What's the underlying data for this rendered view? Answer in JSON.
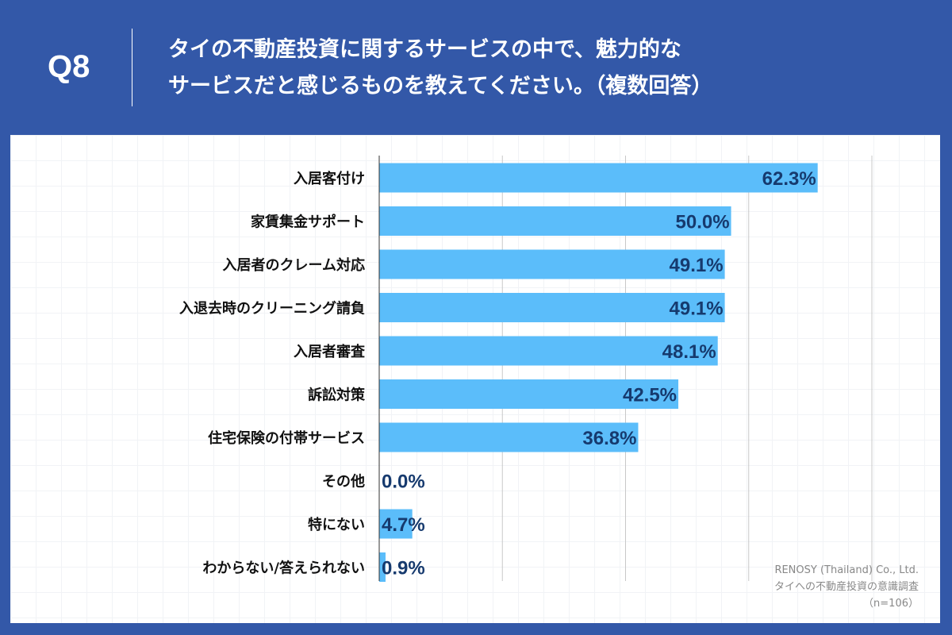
{
  "header": {
    "question_number": "Q8",
    "title_line1": "タイの不動産投資に関するサービスの中で、魅力的な",
    "title_line2": "サービスだと感じるものを教えてください。（複数回答）"
  },
  "source": {
    "company": "RENOSY (Thailand) Co., Ltd.",
    "survey": "タイへの不動産投資の意識調査",
    "sample": "（n=106）"
  },
  "colors": {
    "background": "#3358a8",
    "bar": "#5bbdfa",
    "value_label": "#163a6e"
  },
  "chart_data": {
    "type": "bar",
    "orientation": "horizontal",
    "categories": [
      "入居客付け",
      "家賃集金サポート",
      "入居者のクレーム対応",
      "入退去時のクリーニング請負",
      "入居者審査",
      "訴訟対策",
      "住宅保険の付帯サービス",
      "その他",
      "特にない",
      "わからない/答えられない"
    ],
    "values": [
      62.3,
      50.0,
      49.1,
      49.1,
      48.1,
      42.5,
      36.8,
      0.0,
      4.7,
      0.9
    ],
    "value_labels": [
      "62.3%",
      "50.0%",
      "49.1%",
      "49.1%",
      "48.1%",
      "42.5%",
      "36.8%",
      "0.0%",
      "4.7%",
      "0.9%"
    ],
    "xlim": [
      0,
      70
    ],
    "grid": true
  }
}
